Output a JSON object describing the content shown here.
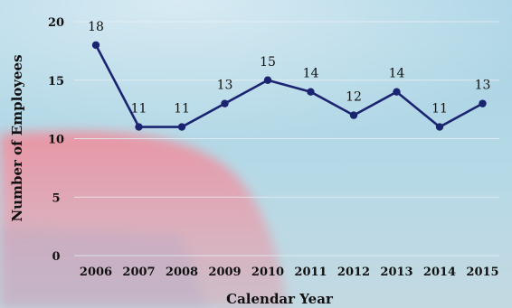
{
  "chart_data": {
    "type": "line",
    "title": "",
    "xlabel": "Calendar Year",
    "ylabel": "Number of Employees",
    "categories": [
      "2006",
      "2007",
      "2008",
      "2009",
      "2010",
      "2011",
      "2012",
      "2013",
      "2014",
      "2015"
    ],
    "series": [
      {
        "values": [
          18,
          11,
          11,
          13,
          15,
          14,
          12,
          14,
          11,
          13
        ]
      }
    ],
    "ylim": [
      0,
      20
    ],
    "yticks": [
      "0",
      "5",
      "10",
      "15",
      "20"
    ],
    "grid": true,
    "legend": "none",
    "colors": {
      "line": "#1b2470",
      "marker": "#1b2470",
      "grid": "#e8eef3"
    }
  }
}
